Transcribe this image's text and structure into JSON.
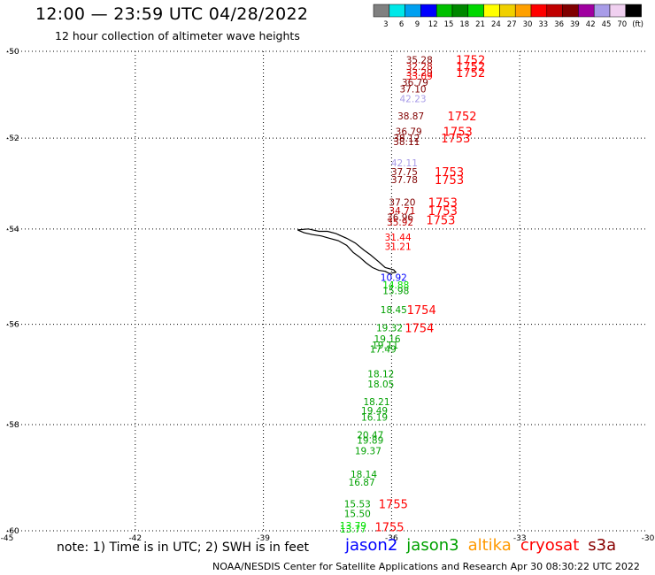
{
  "header": {
    "title": "12:00 — 23:59 UTC 04/28/2022",
    "subtitle": "12 hour collection of altimeter wave heights"
  },
  "color_scale": {
    "colors": [
      "#808080",
      "#00e8e8",
      "#00a0f0",
      "#0000ff",
      "#00c000",
      "#008800",
      "#00d800",
      "#ffff00",
      "#f0d000",
      "#ffa000",
      "#ff0000",
      "#c00000",
      "#800000",
      "#a000a0",
      "#a89ce8",
      "#f0d0f0",
      "#000000"
    ],
    "labels": [
      "3",
      "6",
      "9",
      "12",
      "15",
      "18",
      "21",
      "24",
      "27",
      "30",
      "33",
      "36",
      "39",
      "42",
      "45",
      "70",
      "(ft)"
    ]
  },
  "footer": {
    "note": "note: 1) Time is in UTC; 2) SWH is in feet",
    "credit": "NOAA/NESDIS Center for Satellite Applications and Research   Apr 30 08:30:22 UTC 2022"
  },
  "satellites": [
    {
      "name": "jason2",
      "color": "#0000ff"
    },
    {
      "name": "jason3",
      "color": "#00a000"
    },
    {
      "name": "altika",
      "color": "#ff9900"
    },
    {
      "name": "cryosat",
      "color": "#ff0000"
    },
    {
      "name": "s3a",
      "color": "#880000"
    }
  ],
  "chart_data": {
    "type": "scatter",
    "title": "12:00 — 23:59 UTC 04/28/2022",
    "xlabel": "",
    "ylabel": "",
    "xlim": [
      -45,
      -30
    ],
    "ylim": [
      -60,
      -50
    ],
    "x_ticks": [
      -45,
      -42,
      -39,
      -36,
      -33,
      -30
    ],
    "x_tick_labels": [
      "-45",
      "-42",
      "-39",
      "-36",
      "-33",
      "-30"
    ],
    "y_ticks": [
      -50,
      -52,
      -54,
      -56,
      -58,
      -60
    ],
    "y_tick_labels": [
      "-50",
      "-52",
      "-54",
      "-56",
      "-58",
      "-60"
    ],
    "grid": true,
    "points": [
      {
        "lon": -35.35,
        "lat": -50.2,
        "swh": "35.28",
        "color": "#800000"
      },
      {
        "lon": -35.35,
        "lat": -50.35,
        "swh": "32.28",
        "color": "#c00000"
      },
      {
        "lon": -35.35,
        "lat": -50.5,
        "swh": "33.29",
        "color": "#c00000"
      },
      {
        "lon": -35.35,
        "lat": -50.58,
        "swh": "33.09",
        "color": "#ff0000"
      },
      {
        "lon": -35.45,
        "lat": -50.72,
        "swh": "36.79",
        "color": "#800000"
      },
      {
        "lon": -35.5,
        "lat": -50.88,
        "swh": "37.10",
        "color": "#800000"
      },
      {
        "lon": -35.5,
        "lat": -51.1,
        "swh": "42.23",
        "color": "#a89ce8"
      },
      {
        "lon": -35.55,
        "lat": -51.5,
        "swh": "38.87",
        "color": "#800000"
      },
      {
        "lon": -35.6,
        "lat": -51.85,
        "swh": "36.79",
        "color": "#800000"
      },
      {
        "lon": -35.65,
        "lat": -52.0,
        "swh": "38.12",
        "color": "#800000"
      },
      {
        "lon": -35.65,
        "lat": -52.08,
        "swh": "38.11",
        "color": "#800000"
      },
      {
        "lon": -35.7,
        "lat": -52.55,
        "swh": "42.11",
        "color": "#a89ce8"
      },
      {
        "lon": -35.7,
        "lat": -52.75,
        "swh": "37.75",
        "color": "#800000"
      },
      {
        "lon": -35.7,
        "lat": -52.92,
        "swh": "37.78",
        "color": "#800000"
      },
      {
        "lon": -35.75,
        "lat": -53.42,
        "swh": "37.20",
        "color": "#800000"
      },
      {
        "lon": -35.75,
        "lat": -53.6,
        "swh": "34.71",
        "color": "#c00000"
      },
      {
        "lon": -35.8,
        "lat": -53.75,
        "swh": "36.96",
        "color": "#800000"
      },
      {
        "lon": -35.8,
        "lat": -53.85,
        "swh": "35.92",
        "color": "#c00000"
      },
      {
        "lon": -35.85,
        "lat": -54.17,
        "swh": "31.44",
        "color": "#ff0000"
      },
      {
        "lon": -35.85,
        "lat": -54.37,
        "swh": "31.21",
        "color": "#ff0000"
      },
      {
        "lon": -35.95,
        "lat": -55.03,
        "swh": "10.92",
        "color": "#0000ff"
      },
      {
        "lon": -35.9,
        "lat": -55.18,
        "swh": "14.88",
        "color": "#00e000"
      },
      {
        "lon": -35.9,
        "lat": -55.3,
        "swh": "15.98",
        "color": "#00a000"
      },
      {
        "lon": -35.95,
        "lat": -55.7,
        "swh": "18.45",
        "color": "#00a000"
      },
      {
        "lon": -36.05,
        "lat": -56.07,
        "swh": "19.32",
        "color": "#00a000"
      },
      {
        "lon": -36.1,
        "lat": -56.3,
        "swh": "19.16",
        "color": "#00a000"
      },
      {
        "lon": -36.15,
        "lat": -56.42,
        "swh": "19.11",
        "color": "#00a000"
      },
      {
        "lon": -36.2,
        "lat": -56.5,
        "swh": "17.49",
        "color": "#00a000"
      },
      {
        "lon": -36.25,
        "lat": -57.0,
        "swh": "18.12",
        "color": "#00a000"
      },
      {
        "lon": -36.25,
        "lat": -57.2,
        "swh": "18.05",
        "color": "#00a000"
      },
      {
        "lon": -36.35,
        "lat": -57.55,
        "swh": "18.21",
        "color": "#00a000"
      },
      {
        "lon": -36.4,
        "lat": -57.72,
        "swh": "19.49",
        "color": "#00a000"
      },
      {
        "lon": -36.4,
        "lat": -57.85,
        "swh": "16.19",
        "color": "#00a000"
      },
      {
        "lon": -36.5,
        "lat": -58.2,
        "swh": "20.47",
        "color": "#00a000"
      },
      {
        "lon": -36.5,
        "lat": -58.3,
        "swh": "19.89",
        "color": "#00a000"
      },
      {
        "lon": -36.55,
        "lat": -58.5,
        "swh": "19.37",
        "color": "#00a000"
      },
      {
        "lon": -36.65,
        "lat": -58.95,
        "swh": "18.14",
        "color": "#00a000"
      },
      {
        "lon": -36.7,
        "lat": -59.1,
        "swh": "16.87",
        "color": "#00a000"
      },
      {
        "lon": -36.8,
        "lat": -59.5,
        "swh": "15.53",
        "color": "#00a000"
      },
      {
        "lon": -36.8,
        "lat": -59.68,
        "swh": "15.50",
        "color": "#00a000"
      },
      {
        "lon": -36.9,
        "lat": -59.9,
        "swh": "13.79",
        "color": "#00e000"
      },
      {
        "lon": -36.9,
        "lat": -59.97,
        "swh": "13.77",
        "color": "#00e000"
      }
    ],
    "pass_labels": [
      {
        "lon": -34.15,
        "lat": -50.2,
        "label": "1752"
      },
      {
        "lon": -34.15,
        "lat": -50.35,
        "label": "1752"
      },
      {
        "lon": -34.15,
        "lat": -50.5,
        "label": "1752"
      },
      {
        "lon": -34.35,
        "lat": -51.5,
        "label": "1752"
      },
      {
        "lon": -34.45,
        "lat": -51.85,
        "label": "1753"
      },
      {
        "lon": -34.5,
        "lat": -52.0,
        "label": "1753"
      },
      {
        "lon": -34.65,
        "lat": -52.75,
        "label": "1753"
      },
      {
        "lon": -34.65,
        "lat": -52.92,
        "label": "1753"
      },
      {
        "lon": -34.8,
        "lat": -53.42,
        "label": "1753"
      },
      {
        "lon": -34.8,
        "lat": -53.6,
        "label": "1753"
      },
      {
        "lon": -34.85,
        "lat": -53.8,
        "label": "1753"
      },
      {
        "lon": -35.3,
        "lat": -55.7,
        "label": "1754"
      },
      {
        "lon": -35.35,
        "lat": -56.07,
        "label": "1754"
      },
      {
        "lon": -35.96,
        "lat": -59.5,
        "label": "1755"
      },
      {
        "lon": -36.05,
        "lat": -59.93,
        "label": "1755"
      }
    ],
    "coastline": [
      [
        -38.2,
        -54.02
      ],
      [
        -37.95,
        -54.0
      ],
      [
        -37.7,
        -54.05
      ],
      [
        -37.5,
        -54.05
      ],
      [
        -37.3,
        -54.1
      ],
      [
        -37.05,
        -54.2
      ],
      [
        -36.85,
        -54.3
      ],
      [
        -36.65,
        -54.45
      ],
      [
        -36.5,
        -54.55
      ],
      [
        -36.3,
        -54.7
      ],
      [
        -36.15,
        -54.82
      ],
      [
        -35.95,
        -54.87
      ],
      [
        -35.9,
        -54.92
      ],
      [
        -36.05,
        -54.95
      ],
      [
        -36.15,
        -54.9
      ],
      [
        -36.3,
        -54.88
      ],
      [
        -36.45,
        -54.82
      ],
      [
        -36.6,
        -54.72
      ],
      [
        -36.75,
        -54.6
      ],
      [
        -36.9,
        -54.5
      ],
      [
        -37.05,
        -54.35
      ],
      [
        -37.25,
        -54.25
      ],
      [
        -37.45,
        -54.2
      ],
      [
        -37.65,
        -54.15
      ],
      [
        -37.85,
        -54.12
      ],
      [
        -38.05,
        -54.08
      ],
      [
        -38.2,
        -54.02
      ]
    ]
  }
}
